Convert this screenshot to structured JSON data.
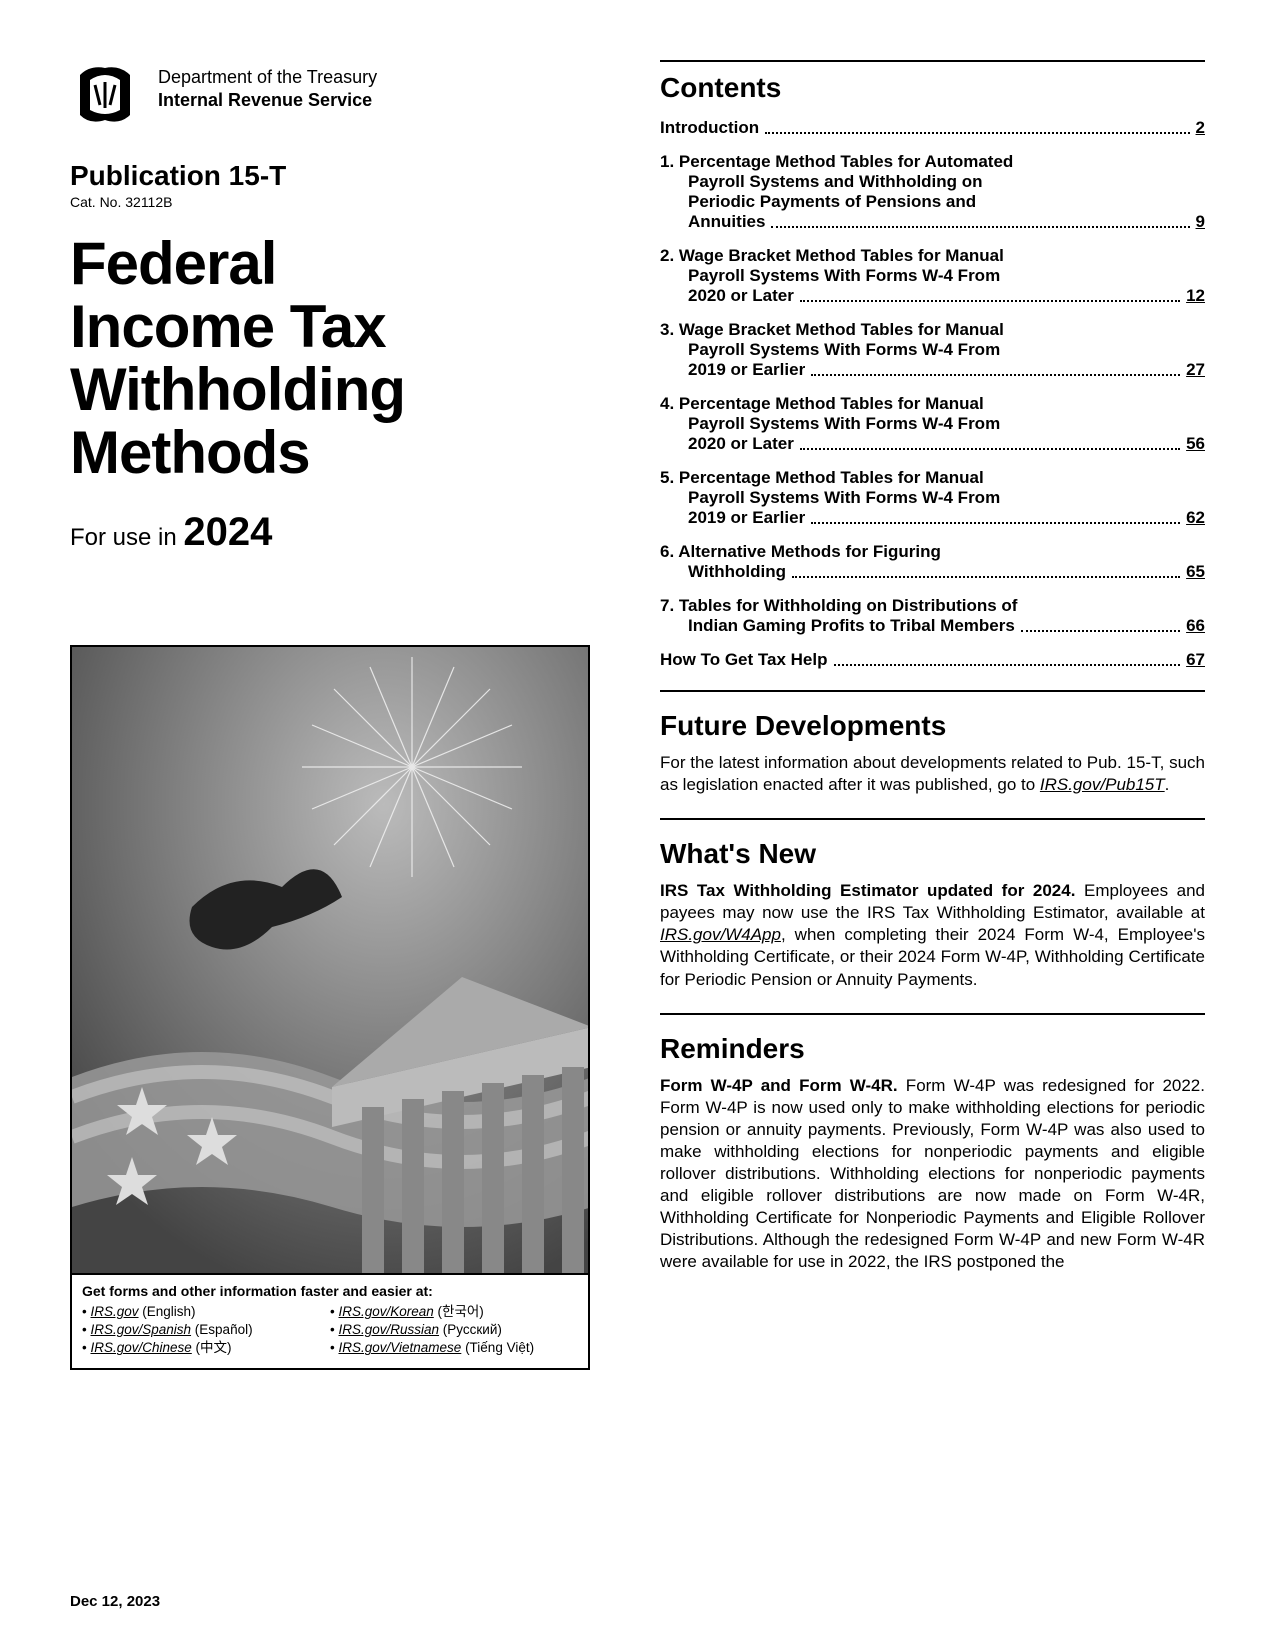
{
  "header": {
    "dept_line1": "Department of the Treasury",
    "dept_line2": "Internal Revenue Service",
    "pub_title": "Publication 15-T",
    "cat_no": "Cat. No. 32112B",
    "main_title_l1": "Federal",
    "main_title_l2": "Income Tax",
    "main_title_l3": "Withholding",
    "main_title_l4": "Methods",
    "for_use_prefix": "For use in ",
    "year": "2024"
  },
  "cover_links": {
    "heading": "Get forms and other information faster and easier at:",
    "col1": [
      {
        "url": "IRS.gov",
        "lang": "(English)"
      },
      {
        "url": "IRS.gov/Spanish",
        "lang": "(Español)"
      },
      {
        "url": "IRS.gov/Chinese",
        "lang": "(中文)"
      }
    ],
    "col2": [
      {
        "url": "IRS.gov/Korean",
        "lang": "(한국어)"
      },
      {
        "url": "IRS.gov/Russian",
        "lang": "(Pусский)"
      },
      {
        "url": "IRS.gov/Vietnamese",
        "lang": "(Tiếng Việt)"
      }
    ]
  },
  "contents": {
    "title": "Contents",
    "items": [
      {
        "num": "",
        "lines": [
          "Introduction"
        ],
        "page": "2"
      },
      {
        "num": "1.",
        "lines": [
          "Percentage Method Tables for Automated",
          "Payroll Systems and Withholding on",
          "Periodic Payments of Pensions and",
          "Annuities"
        ],
        "page": "9"
      },
      {
        "num": "2.",
        "lines": [
          "Wage Bracket Method Tables for Manual",
          "Payroll Systems With Forms W-4 From",
          "2020 or Later"
        ],
        "page": "12"
      },
      {
        "num": "3.",
        "lines": [
          "Wage Bracket Method Tables for Manual",
          "Payroll Systems With Forms W-4 From",
          "2019 or Earlier"
        ],
        "page": "27"
      },
      {
        "num": "4.",
        "lines": [
          "Percentage Method Tables for Manual",
          "Payroll Systems With Forms W-4 From",
          "2020 or Later"
        ],
        "page": "56"
      },
      {
        "num": "5.",
        "lines": [
          "Percentage Method Tables for Manual",
          "Payroll Systems With Forms W-4 From",
          "2019 or Earlier"
        ],
        "page": "62"
      },
      {
        "num": "6.",
        "lines": [
          "Alternative Methods for Figuring",
          "Withholding"
        ],
        "page": "65"
      },
      {
        "num": "7.",
        "lines": [
          "Tables for Withholding on Distributions of",
          "Indian Gaming Profits to Tribal Members"
        ],
        "page": "66"
      },
      {
        "num": "",
        "lines": [
          "How To Get Tax Help"
        ],
        "page": "67"
      }
    ]
  },
  "future": {
    "title": "Future Developments",
    "body_pre": "For the latest information about developments related to Pub. 15-T, such as legislation enacted after it was published, go to ",
    "link": "IRS.gov/Pub15T",
    "body_post": "."
  },
  "whatsnew": {
    "title": "What's New",
    "lead": "IRS Tax Withholding Estimator updated for 2024.",
    "body_pre": " Employees and payees may now use the IRS Tax Withholding Estimator, available at ",
    "link": "IRS.gov/W4App",
    "body_post": ", when completing their 2024 Form W-4, Employee's Withholding Certificate, or their 2024 Form W-4P, Withholding Certificate for Periodic Pension or Annuity Payments."
  },
  "reminders": {
    "title": "Reminders",
    "lead": "Form W-4P and Form W-4R.",
    "body": " Form W-4P was redesigned for 2022. Form W-4P is now used only to make withholding elections for periodic pension or annuity payments. Previously, Form W-4P was also used to make withholding elections for nonperiodic payments and eligible rollover distributions. Withholding elections for nonperiodic payments and eligible rollover distributions are now made on Form W-4R, Withholding Certificate for Nonperiodic Payments and Eligible Rollover Distributions. Although the redesigned Form W-4P and new Form W-4R were available for use in 2022, the IRS postponed the"
  },
  "footer": {
    "date": "Dec 12, 2023"
  }
}
